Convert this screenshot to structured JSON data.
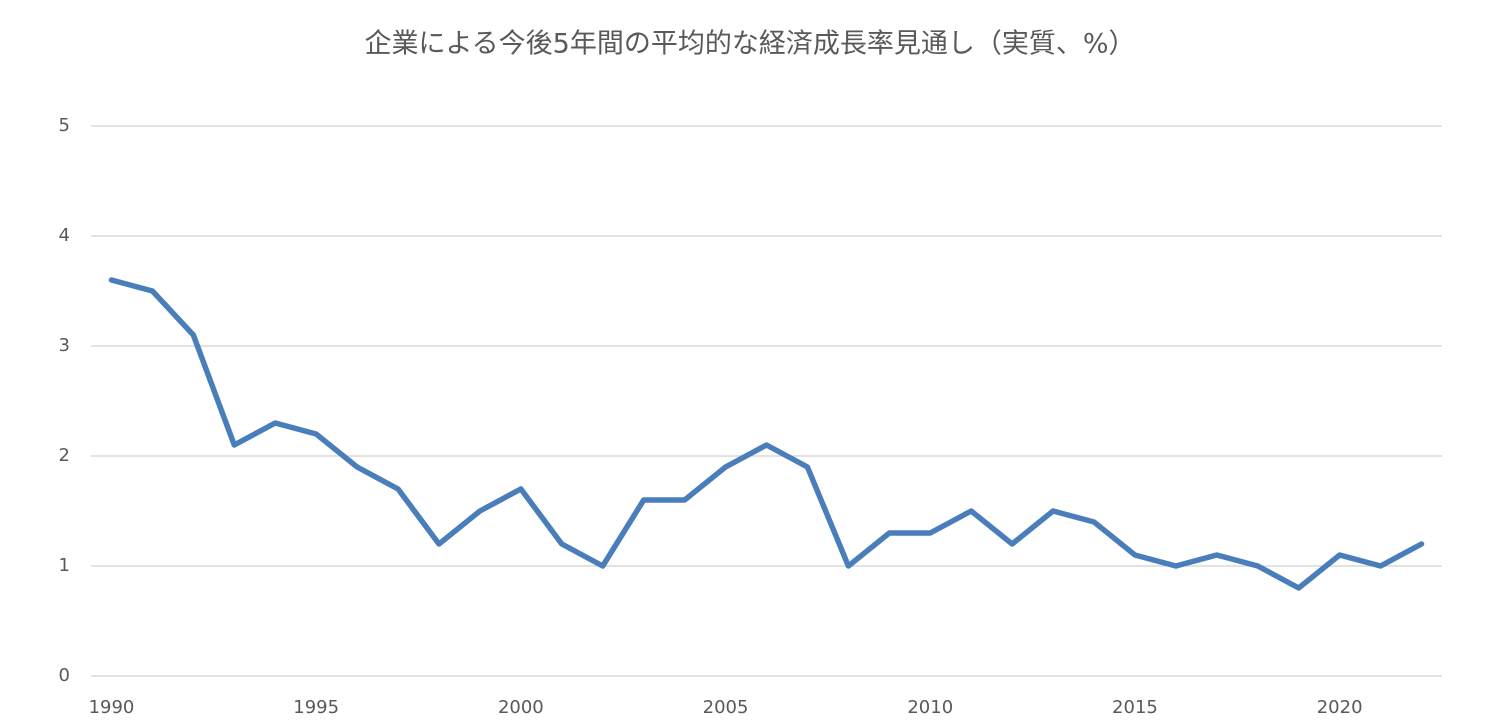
{
  "chart_data": {
    "type": "line",
    "title": "企業による今後5年間の平均的な経済成長率見通し（実質、%）",
    "x": [
      1990,
      1991,
      1992,
      1993,
      1994,
      1995,
      1996,
      1997,
      1998,
      1999,
      2000,
      2001,
      2002,
      2003,
      2004,
      2005,
      2006,
      2007,
      2008,
      2009,
      2010,
      2011,
      2012,
      2013,
      2014,
      2015,
      2016,
      2017,
      2018,
      2019,
      2020,
      2021,
      2022
    ],
    "values": [
      3.6,
      3.5,
      3.1,
      2.1,
      2.3,
      2.2,
      1.9,
      1.7,
      1.2,
      1.5,
      1.7,
      1.2,
      1.0,
      1.6,
      1.6,
      1.9,
      2.1,
      1.9,
      1.0,
      1.3,
      1.3,
      1.5,
      1.2,
      1.5,
      1.4,
      1.1,
      1.0,
      1.1,
      1.0,
      0.8,
      1.1,
      1.0,
      1.2
    ],
    "color": "#4a7ebb",
    "xlim": [
      1989.5,
      2022.5
    ],
    "xticks": [
      1990,
      1995,
      2000,
      2005,
      2010,
      2015,
      2020
    ],
    "ylim": [
      0,
      5
    ],
    "yticks": [
      0,
      1,
      2,
      3,
      4,
      5
    ],
    "grid": true
  }
}
